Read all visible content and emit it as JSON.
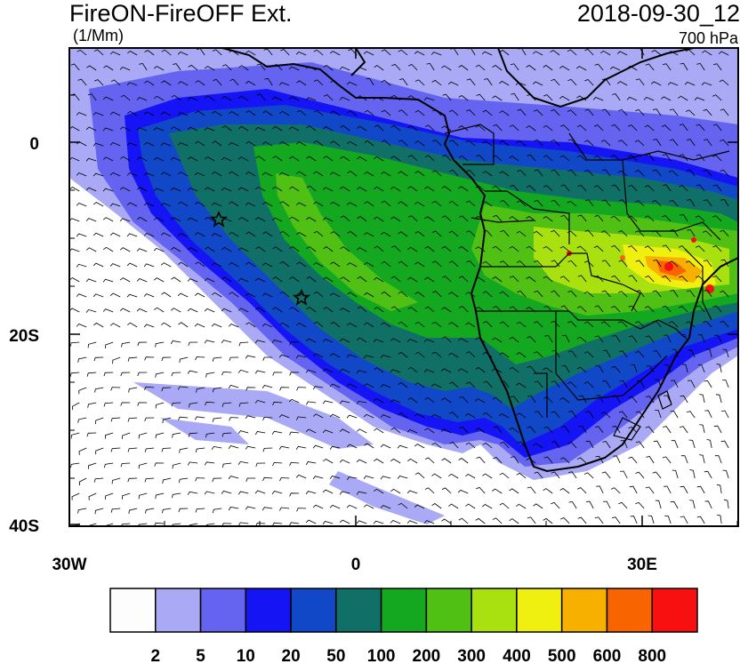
{
  "header": {
    "title": "FireON-FireOFF Ext.",
    "units": "(1/Mm)",
    "datetime": "2018-09-30_12",
    "level": "700 hPa"
  },
  "axes": {
    "y_ticks": [
      "0",
      "20S",
      "40S"
    ],
    "x_ticks": [
      "30W",
      "0",
      "30E"
    ]
  },
  "colorbar": {
    "colors": [
      "#fdfdfd",
      "#a9a9f5",
      "#6464f0",
      "#1414f5",
      "#1048c8",
      "#107068",
      "#14a820",
      "#50c014",
      "#a8e010",
      "#f0f010",
      "#f8b000",
      "#f86400",
      "#f81010"
    ],
    "labels": [
      "2",
      "5",
      "10",
      "20",
      "50",
      "100",
      "200",
      "300",
      "400",
      "500",
      "600",
      "800"
    ]
  },
  "markers": {
    "star_icons": [
      "star-icon",
      "star-icon"
    ]
  }
}
